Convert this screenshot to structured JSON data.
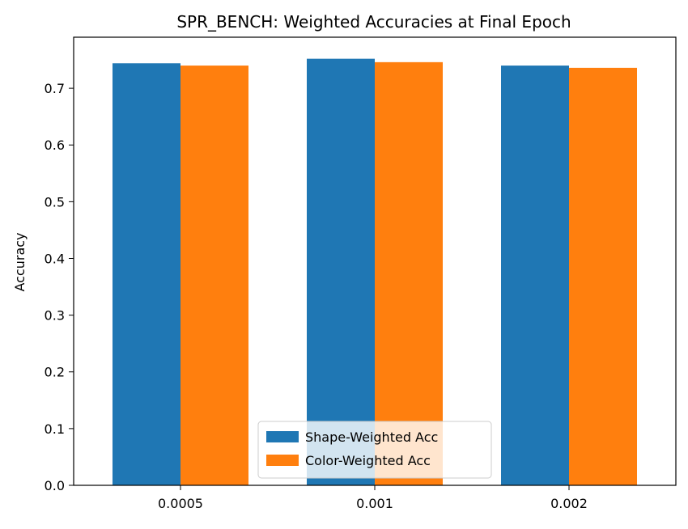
{
  "chart_data": {
    "type": "bar",
    "title": "SPR_BENCH: Weighted Accuracies at Final Epoch",
    "xlabel": "",
    "ylabel": "Accuracy",
    "categories": [
      "0.0005",
      "0.001",
      "0.002"
    ],
    "series": [
      {
        "name": "Shape-Weighted Acc",
        "color": "#1f77b4",
        "values": [
          0.744,
          0.752,
          0.74
        ]
      },
      {
        "name": "Color-Weighted Acc",
        "color": "#ff7f0e",
        "values": [
          0.74,
          0.746,
          0.736
        ]
      }
    ],
    "ylim": [
      0,
      0.79
    ],
    "yticks": [
      0.0,
      0.1,
      0.2,
      0.3,
      0.4,
      0.5,
      0.6,
      0.7
    ],
    "yticklabels": [
      "0.0",
      "0.1",
      "0.2",
      "0.3",
      "0.4",
      "0.5",
      "0.6",
      "0.7"
    ],
    "grid": false,
    "legend_position": "bottom-center"
  }
}
